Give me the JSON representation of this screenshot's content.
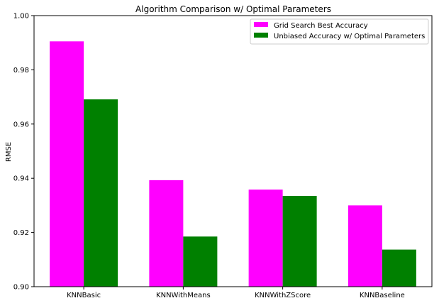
{
  "chart_data": {
    "type": "bar",
    "title": "Algorithm Comparison w/ Optimal Parameters",
    "xlabel": "",
    "ylabel": "RMSE",
    "ylim": [
      0.9,
      1.0
    ],
    "yticks": [
      "0.90",
      "0.92",
      "0.94",
      "0.96",
      "0.98",
      "1.00"
    ],
    "categories": [
      "KNNBasic",
      "KNNWithMeans",
      "KNNWithZScore",
      "KNNBaseline"
    ],
    "series": [
      {
        "name": "Grid Search Best Accuracy",
        "color": "#ff00ff",
        "values": [
          0.9905,
          0.9393,
          0.9358,
          0.93
        ]
      },
      {
        "name": "Unbiased Accuracy w/ Optimal Parameters",
        "color": "#008000",
        "values": [
          0.9691,
          0.9185,
          0.9335,
          0.9137
        ]
      }
    ],
    "grid": false,
    "legend": "top-right"
  }
}
